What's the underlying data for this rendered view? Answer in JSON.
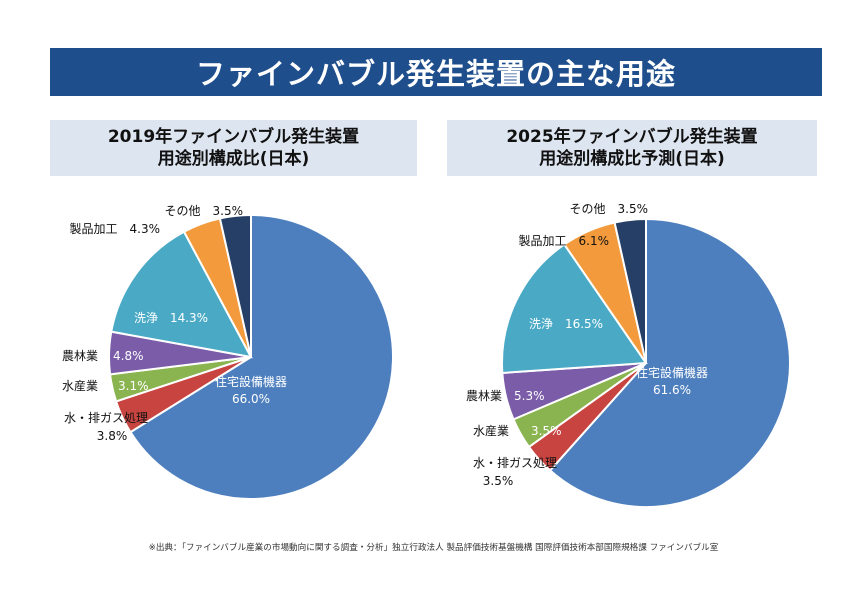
{
  "banner": {
    "title": "ファインバブル発生装置の主な用途"
  },
  "chart_data": [
    {
      "type": "pie",
      "title_line1": "2019年ファインバブル発生装置",
      "title_line2": "用途別構成比(日本)",
      "slices": [
        {
          "label": "住宅設備機器",
          "value": 66.0,
          "value_text": "66.0%",
          "color": "#4d7fbe"
        },
        {
          "label": "水・排ガス処理",
          "value": 3.8,
          "value_text": "3.8%",
          "color": "#c84440"
        },
        {
          "label": "水産業",
          "value": 3.1,
          "value_text": "3.1%",
          "color": "#8ab450"
        },
        {
          "label": "農林業",
          "value": 4.8,
          "value_text": "4.8%",
          "color": "#7a5ca8"
        },
        {
          "label": "洗浄",
          "value": 14.3,
          "value_text": "14.3%",
          "color": "#4aaac6"
        },
        {
          "label": "製品加工",
          "value": 4.3,
          "value_text": "4.3%",
          "color": "#f39b3c"
        },
        {
          "label": "その他",
          "value": 3.5,
          "value_text": "3.5%",
          "color": "#253f66"
        }
      ]
    },
    {
      "type": "pie",
      "title_line1": "2025年ファインバブル発生装置",
      "title_line2": "用途別構成比予測(日本)",
      "slices": [
        {
          "label": "住宅設備機器",
          "value": 61.6,
          "value_text": "61.6%",
          "color": "#4d7fbe"
        },
        {
          "label": "水・排ガス処理",
          "value": 3.5,
          "value_text": "3.5%",
          "color": "#c84440"
        },
        {
          "label": "水産業",
          "value": 3.5,
          "value_text": "3.5%",
          "color": "#8ab450"
        },
        {
          "label": "農林業",
          "value": 5.3,
          "value_text": "5.3%",
          "color": "#7a5ca8"
        },
        {
          "label": "洗浄",
          "value": 16.5,
          "value_text": "16.5%",
          "color": "#4aaac6"
        },
        {
          "label": "製品加工",
          "value": 6.1,
          "value_text": "6.1%",
          "color": "#f39b3c"
        },
        {
          "label": "その他",
          "value": 3.5,
          "value_text": "3.5%",
          "color": "#253f66"
        }
      ]
    }
  ],
  "footer": {
    "source": "※出典：「ファインバブル産業の市場動向に関する調査・分析」独立行政法人 製品評価技術基盤機構 国際評価技術本部国際規格課 ファインバブル室"
  }
}
